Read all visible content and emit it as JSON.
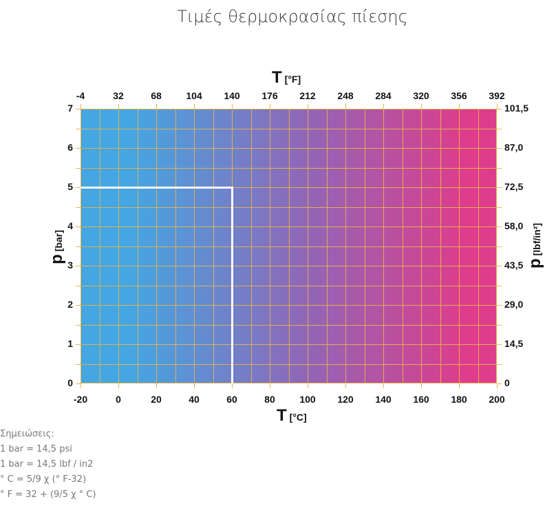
{
  "page": {
    "title": "Τιμές θερμοκρασίας πίεσης"
  },
  "chart_data": {
    "type": "heatmap",
    "title": "Τιμές θερμοκρασίας πίεσης",
    "xlabel": "T [°C]",
    "xlabel_main": "T",
    "xlabel_unit": "[°C]",
    "x2label_main": "T",
    "x2label_unit": "[°F]",
    "ylabel_main": "p",
    "ylabel_unit": "[bar]",
    "y2label_main": "p",
    "y2label_unit": "[lbf/in²]",
    "xlim": [
      -20,
      200
    ],
    "ylim": [
      0,
      7
    ],
    "grid": true,
    "x_ticks_celsius": [
      "-20",
      "0",
      "20",
      "40",
      "60",
      "80",
      "100",
      "120",
      "140",
      "160",
      "180",
      "200"
    ],
    "x_ticks_fahrenheit": [
      "-4",
      "32",
      "68",
      "104",
      "140",
      "176",
      "212",
      "248",
      "284",
      "320",
      "356",
      "392"
    ],
    "y_ticks_bar": [
      "0",
      "1",
      "2",
      "3",
      "4",
      "5",
      "6",
      "7"
    ],
    "y_ticks_psi": [
      "0",
      "14,5",
      "29,0",
      "43,5",
      "58,0",
      "72,5",
      "87,0",
      "101,5"
    ],
    "gradient": {
      "left_color": "#44a6e2",
      "mid_color": "#9265b6",
      "right_color": "#dd3d8c"
    },
    "grid_color": "#e9b64a",
    "marker_line": {
      "color": "#ffffff",
      "points": [
        {
          "x": -20,
          "y": 5
        },
        {
          "x": 60,
          "y": 5
        },
        {
          "x": 60,
          "y": 0
        }
      ],
      "description": "Max 5 bar up to 60 °C"
    }
  },
  "notes": {
    "heading": "Σημειώσεις:",
    "lines": [
      "1 bar = 14,5 psi",
      "1 bar = 14,5 lbf / in2",
      "° C = 5/9 χ (° F-32)",
      "° F = 32 + (9/5 χ ° C)"
    ]
  }
}
